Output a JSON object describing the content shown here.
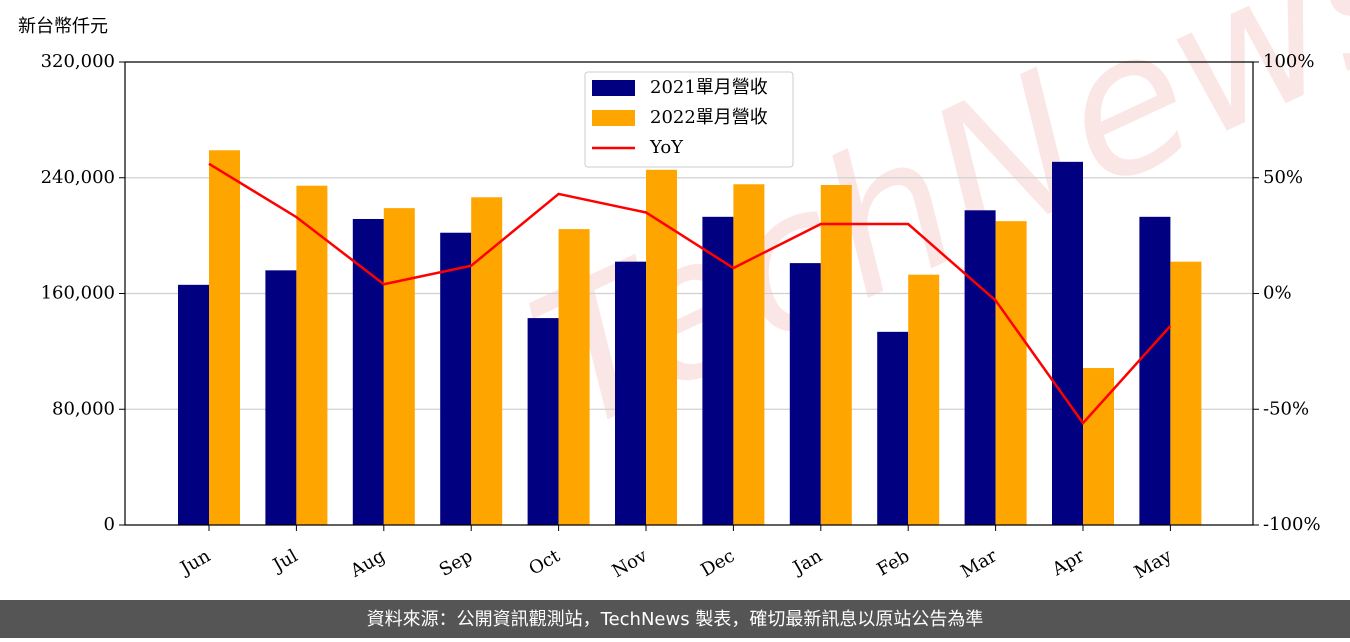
{
  "chart_data": {
    "type": "bar_line",
    "y_label": "新台幣仟元",
    "watermark": "TechNews",
    "footer": "資料來源：公開資訊觀測站，TechNews 製表，確切最新訊息以原站公告為準",
    "categories": [
      "Jun",
      "Jul",
      "Aug",
      "Sep",
      "Oct",
      "Nov",
      "Dec",
      "Jan",
      "Feb",
      "Mar",
      "Apr",
      "May"
    ],
    "series": [
      {
        "name": "2021單月營收",
        "color": "#000080",
        "type": "bar",
        "values": [
          166000,
          176000,
          211500,
          202000,
          143000,
          182000,
          213000,
          181000,
          133500,
          217500,
          251000,
          213000
        ]
      },
      {
        "name": "2022單月營收",
        "color": "#ffa500",
        "type": "bar",
        "values": [
          259000,
          234500,
          219000,
          226500,
          204500,
          245500,
          235500,
          235000,
          173000,
          210000,
          108500,
          182000
        ]
      },
      {
        "name": "YoY",
        "color": "#ff0000",
        "type": "line",
        "axis": "y2",
        "values": [
          56,
          33,
          4,
          12,
          43,
          35,
          11,
          30,
          30,
          -3,
          -56,
          -14
        ]
      }
    ],
    "ylim": [
      0,
      320000
    ],
    "yticks": [
      0,
      {
        "value": 80000,
        "label": "80,000"
      },
      {
        "value": 160000,
        "label": "160,000"
      },
      {
        "value": 240000,
        "label": "240,000"
      },
      {
        "value": 320000,
        "label": "320,000"
      }
    ],
    "y2lim": [
      -100,
      100
    ],
    "y2ticks": [
      {
        "value": -100,
        "label": "-100%"
      },
      {
        "value": -50,
        "label": "-50%"
      },
      {
        "value": 0,
        "label": "0%"
      },
      {
        "value": 50,
        "label": "50%"
      },
      {
        "value": 100,
        "label": "100%"
      }
    ],
    "grid": true
  }
}
